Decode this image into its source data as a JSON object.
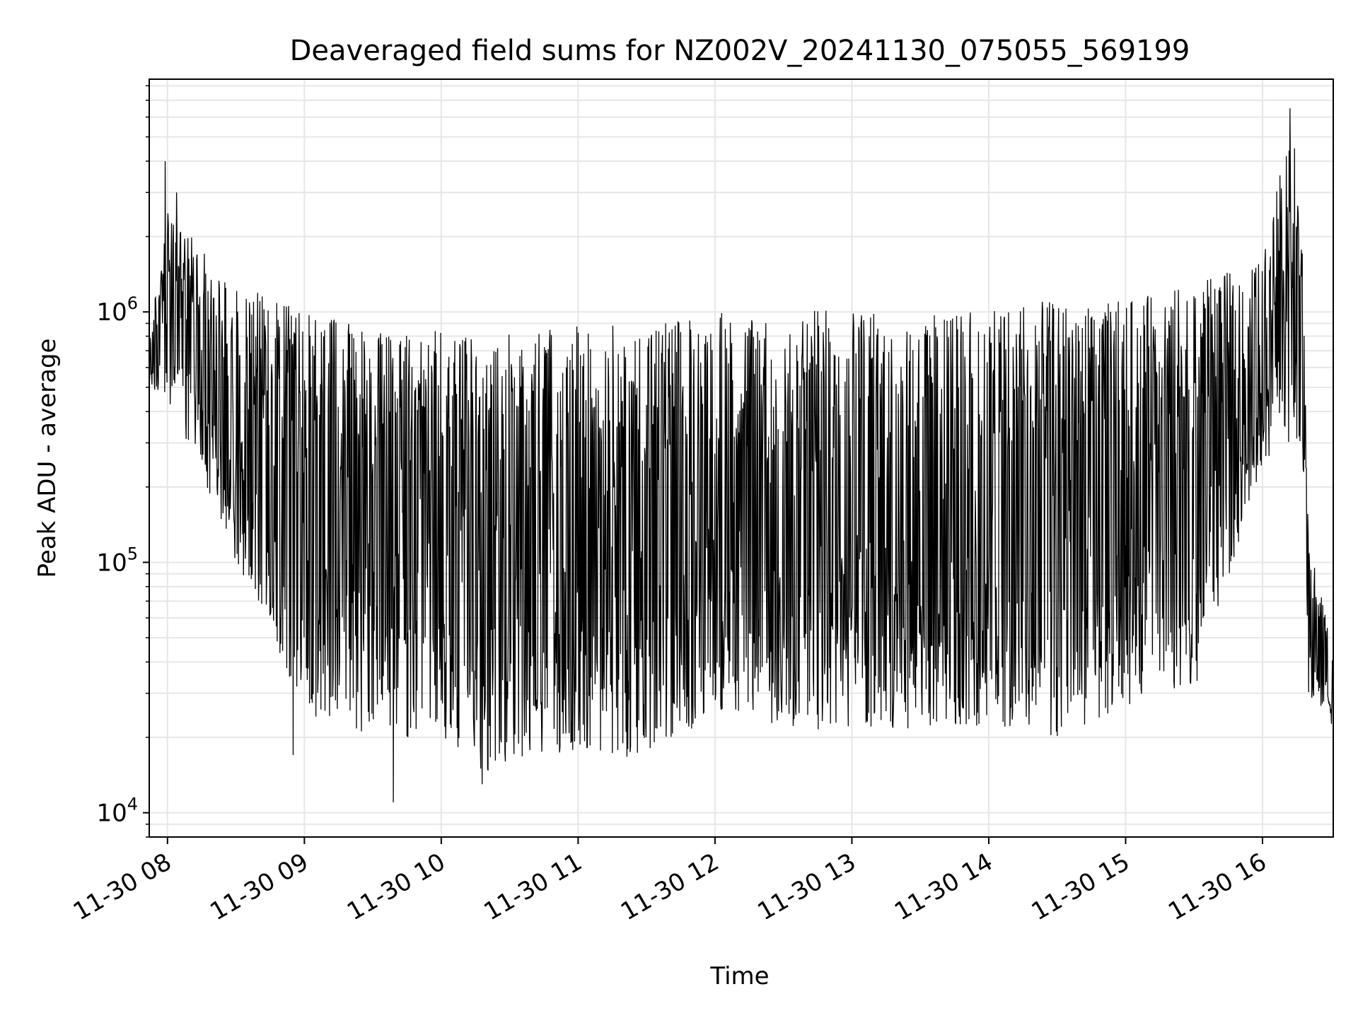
{
  "chart_data": {
    "type": "line",
    "title": "Deaveraged field sums for NZ002V_20241130_075055_569199",
    "xlabel": "Time",
    "ylabel": "Peak ADU - average",
    "xscale": "time",
    "yscale": "log",
    "xlim": [
      "2024-11-30 07:52",
      "2024-11-30 16:31"
    ],
    "ylim": [
      8000,
      8500000
    ],
    "grid": true,
    "color": "#000000",
    "x_ticks": [
      {
        "label": "11-30 08",
        "value": "2024-11-30 08:00"
      },
      {
        "label": "11-30 09",
        "value": "2024-11-30 09:00"
      },
      {
        "label": "11-30 10",
        "value": "2024-11-30 10:00"
      },
      {
        "label": "11-30 11",
        "value": "2024-11-30 11:00"
      },
      {
        "label": "11-30 12",
        "value": "2024-11-30 12:00"
      },
      {
        "label": "11-30 13",
        "value": "2024-11-30 13:00"
      },
      {
        "label": "11-30 14",
        "value": "2024-11-30 14:00"
      },
      {
        "label": "11-30 15",
        "value": "2024-11-30 15:00"
      },
      {
        "label": "11-30 16",
        "value": "2024-11-30 16:00"
      }
    ],
    "y_ticks": [
      {
        "base": "10",
        "exp": "4",
        "value": 10000
      },
      {
        "base": "10",
        "exp": "5",
        "value": 100000
      },
      {
        "base": "10",
        "exp": "6",
        "value": 1000000
      }
    ],
    "envelope": {
      "x": [
        "2024-11-30 07:52",
        "2024-11-30 08:00",
        "2024-11-30 08:30",
        "2024-11-30 09:00",
        "2024-11-30 09:30",
        "2024-11-30 10:00",
        "2024-11-30 10:20",
        "2024-11-30 11:00",
        "2024-11-30 11:30",
        "2024-11-30 12:00",
        "2024-11-30 12:30",
        "2024-11-30 13:00",
        "2024-11-30 13:30",
        "2024-11-30 14:00",
        "2024-11-30 14:30",
        "2024-11-30 15:00",
        "2024-11-30 15:30",
        "2024-11-30 16:00",
        "2024-11-30 16:10",
        "2024-11-30 16:17",
        "2024-11-30 16:20",
        "2024-11-30 16:31"
      ],
      "upper": [
        800000,
        2500000,
        1300000,
        1000000,
        850000,
        850000,
        800000,
        900000,
        900000,
        1000000,
        1000000,
        1050000,
        1000000,
        1100000,
        1100000,
        1100000,
        1300000,
        1600000,
        5000000,
        3000000,
        130000,
        45000
      ],
      "lower": [
        500000,
        450000,
        100000,
        25000,
        20000,
        20000,
        14000,
        18000,
        16000,
        25000,
        22000,
        20000,
        22000,
        22000,
        20000,
        26000,
        30000,
        250000,
        300000,
        300000,
        30000,
        22000
      ],
      "peaks": [
        {
          "x": "2024-11-30 07:59",
          "y": 4000000
        },
        {
          "x": "2024-11-30 08:04",
          "y": 3000000
        },
        {
          "x": "2024-11-30 16:12",
          "y": 6500000
        },
        {
          "x": "2024-11-30 16:14",
          "y": 4500000
        }
      ],
      "troughs": [
        {
          "x": "2024-11-30 09:39",
          "y": 11000
        },
        {
          "x": "2024-11-30 10:18",
          "y": 13000
        },
        {
          "x": "2024-11-30 08:55",
          "y": 17000
        }
      ]
    }
  }
}
